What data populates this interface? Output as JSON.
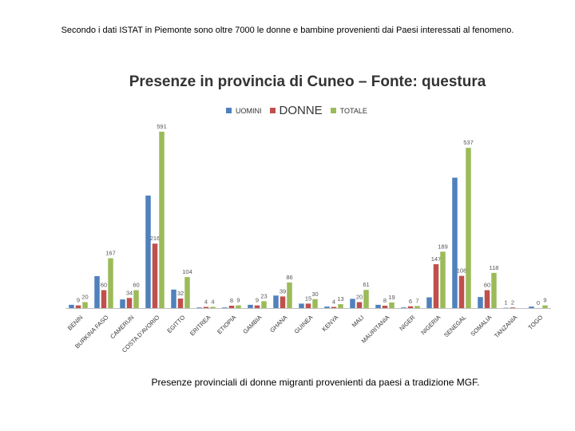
{
  "slide": {
    "heading": "Secondo i dati ISTAT in Piemonte sono oltre 7000 le donne e bambine provenienti dai Paesi interessati al fenomeno.",
    "caption": "Presenze provinciali di donne migranti provenienti da paesi a tradizione MGF."
  },
  "colors": {
    "uomini": "#4f81bd",
    "donne": "#c0504d",
    "totale": "#9bbb59",
    "axis": "#bfbfbf"
  },
  "chart_data": {
    "type": "bar",
    "title": "Presenze in provincia di Cuneo – Fonte: questura",
    "legend_position": "top",
    "ylim": [
      0,
      600
    ],
    "grid": false,
    "categories": [
      "BENIN",
      "BURKINA FASO",
      "CAMERUN",
      "COSTA D'AVORIO",
      "EGITTO",
      "ERITREA",
      "ETIOPIA",
      "GAMBIA",
      "GHANA",
      "GUINEA",
      "KENYA",
      "MALI",
      "MAURITANIA",
      "NIGER",
      "NIGERIA",
      "SENEGAL",
      "SOMALIA",
      "TANZANIA",
      "TOGO"
    ],
    "series": [
      {
        "name": "UOMINI",
        "values": [
          11,
          107,
          29,
          377,
          62,
          2,
          2,
          11,
          42,
          15,
          5,
          31,
          11,
          2,
          36,
          437,
          37,
          1,
          5
        ]
      },
      {
        "name": "DONNE",
        "values": [
          9,
          60,
          34,
          216,
          32,
          4,
          8,
          9,
          39,
          15,
          4,
          20,
          8,
          6,
          147,
          108,
          60,
          2,
          0
        ]
      },
      {
        "name": "TOTALE",
        "values": [
          20,
          167,
          60,
          591,
          104,
          4,
          9,
          23,
          86,
          30,
          13,
          61,
          19,
          7,
          189,
          537,
          118,
          0,
          9
        ]
      }
    ],
    "labels": {
      "DONNE": [
        "9",
        "60",
        "34",
        "216",
        "32",
        "4",
        "8",
        "9",
        "39",
        "15",
        "4",
        "20",
        "8",
        "6",
        "147",
        "108",
        "60",
        "2",
        "0"
      ],
      "TOTALE": [
        "20",
        "167",
        "60",
        "591",
        "104",
        "4",
        "9",
        "23",
        "86",
        "30",
        "13",
        "61",
        "19",
        "7",
        "189",
        "537",
        "118",
        "",
        "9"
      ],
      "UOMINI": [
        "",
        "",
        "",
        "",
        "",
        "",
        "",
        "",
        "",
        "",
        "",
        "",
        "",
        "",
        "",
        "",
        "",
        "1",
        ""
      ]
    }
  }
}
